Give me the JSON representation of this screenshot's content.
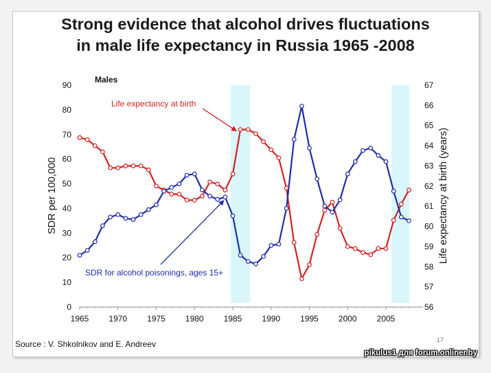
{
  "slide": {
    "title_line1": "Strong evidence that alcohol drives fluctuations",
    "title_line2": "in male life expectancy in Russia 1965 -2008",
    "source": "Source :  V. Shkolnikov and E. Andreev",
    "page_number": "17",
    "watermark": "pikulus1 для forum.onliner.by"
  },
  "chart_data": {
    "type": "line",
    "panel_label": "Males",
    "ylabel": "SDR per 100,000",
    "y2label": "Life expectancy at birth (years)",
    "xlim": [
      1965,
      2009
    ],
    "ylim": [
      0,
      90
    ],
    "y2lim": [
      56,
      67
    ],
    "x_ticks": [
      1965,
      1970,
      1975,
      1980,
      1985,
      1990,
      1995,
      2000,
      2005
    ],
    "y_ticks": [
      0,
      10,
      20,
      30,
      40,
      50,
      60,
      70,
      80,
      90
    ],
    "y2_ticks": [
      56,
      57,
      58,
      59,
      60,
      61,
      62,
      63,
      64,
      65,
      66,
      67
    ],
    "highlight_periods": [
      [
        1985,
        1987
      ],
      [
        2006,
        2007.8
      ]
    ],
    "x": [
      1965,
      1966,
      1967,
      1968,
      1969,
      1970,
      1971,
      1972,
      1973,
      1974,
      1975,
      1976,
      1977,
      1978,
      1979,
      1980,
      1981,
      1982,
      1983,
      1984,
      1985,
      1986,
      1987,
      1988,
      1989,
      1990,
      1991,
      1992,
      1993,
      1994,
      1995,
      1996,
      1997,
      1998,
      1999,
      2000,
      2001,
      2002,
      2003,
      2004,
      2005,
      2006,
      2007,
      2008
    ],
    "series": [
      {
        "name": "Life expectancy at birth",
        "axis": "right",
        "color": "#d42020",
        "values": [
          64.4,
          64.3,
          64.0,
          63.7,
          62.9,
          62.9,
          63.0,
          63.0,
          63.0,
          62.8,
          62.0,
          61.8,
          61.6,
          61.6,
          61.3,
          61.3,
          61.5,
          62.2,
          62.1,
          61.8,
          62.6,
          64.8,
          64.8,
          64.6,
          64.2,
          63.8,
          63.4,
          61.9,
          59.2,
          57.4,
          58.1,
          59.6,
          60.8,
          61.2,
          59.9,
          59.0,
          58.9,
          58.7,
          58.6,
          58.9,
          58.9,
          60.3,
          61.1,
          61.8
        ]
      },
      {
        "name": "SDR for alcohol poisonings, ages 15+",
        "axis": "left",
        "color": "#1e2ca8",
        "values": [
          21.0,
          23.0,
          26.5,
          33.0,
          36.5,
          37.5,
          36.0,
          35.5,
          37.5,
          39.5,
          41.5,
          47.0,
          48.5,
          50.0,
          53.5,
          54.0,
          47.5,
          45.0,
          43.7,
          44.6,
          37.0,
          21.0,
          18.5,
          17.5,
          20.5,
          25.0,
          25.5,
          40.0,
          68.0,
          81.5,
          64.5,
          52.0,
          41.0,
          38.5,
          43.5,
          54.0,
          59.0,
          63.5,
          64.5,
          61.5,
          59.0,
          47.0,
          36.5,
          35.0
        ]
      }
    ],
    "annotations": [
      {
        "text": "Life expectancy at birth",
        "series": 0,
        "color": "#d42020"
      },
      {
        "text": "SDR for alcohol poisonings, ages 15+",
        "series": 1,
        "color": "#1e2ca8"
      }
    ]
  }
}
